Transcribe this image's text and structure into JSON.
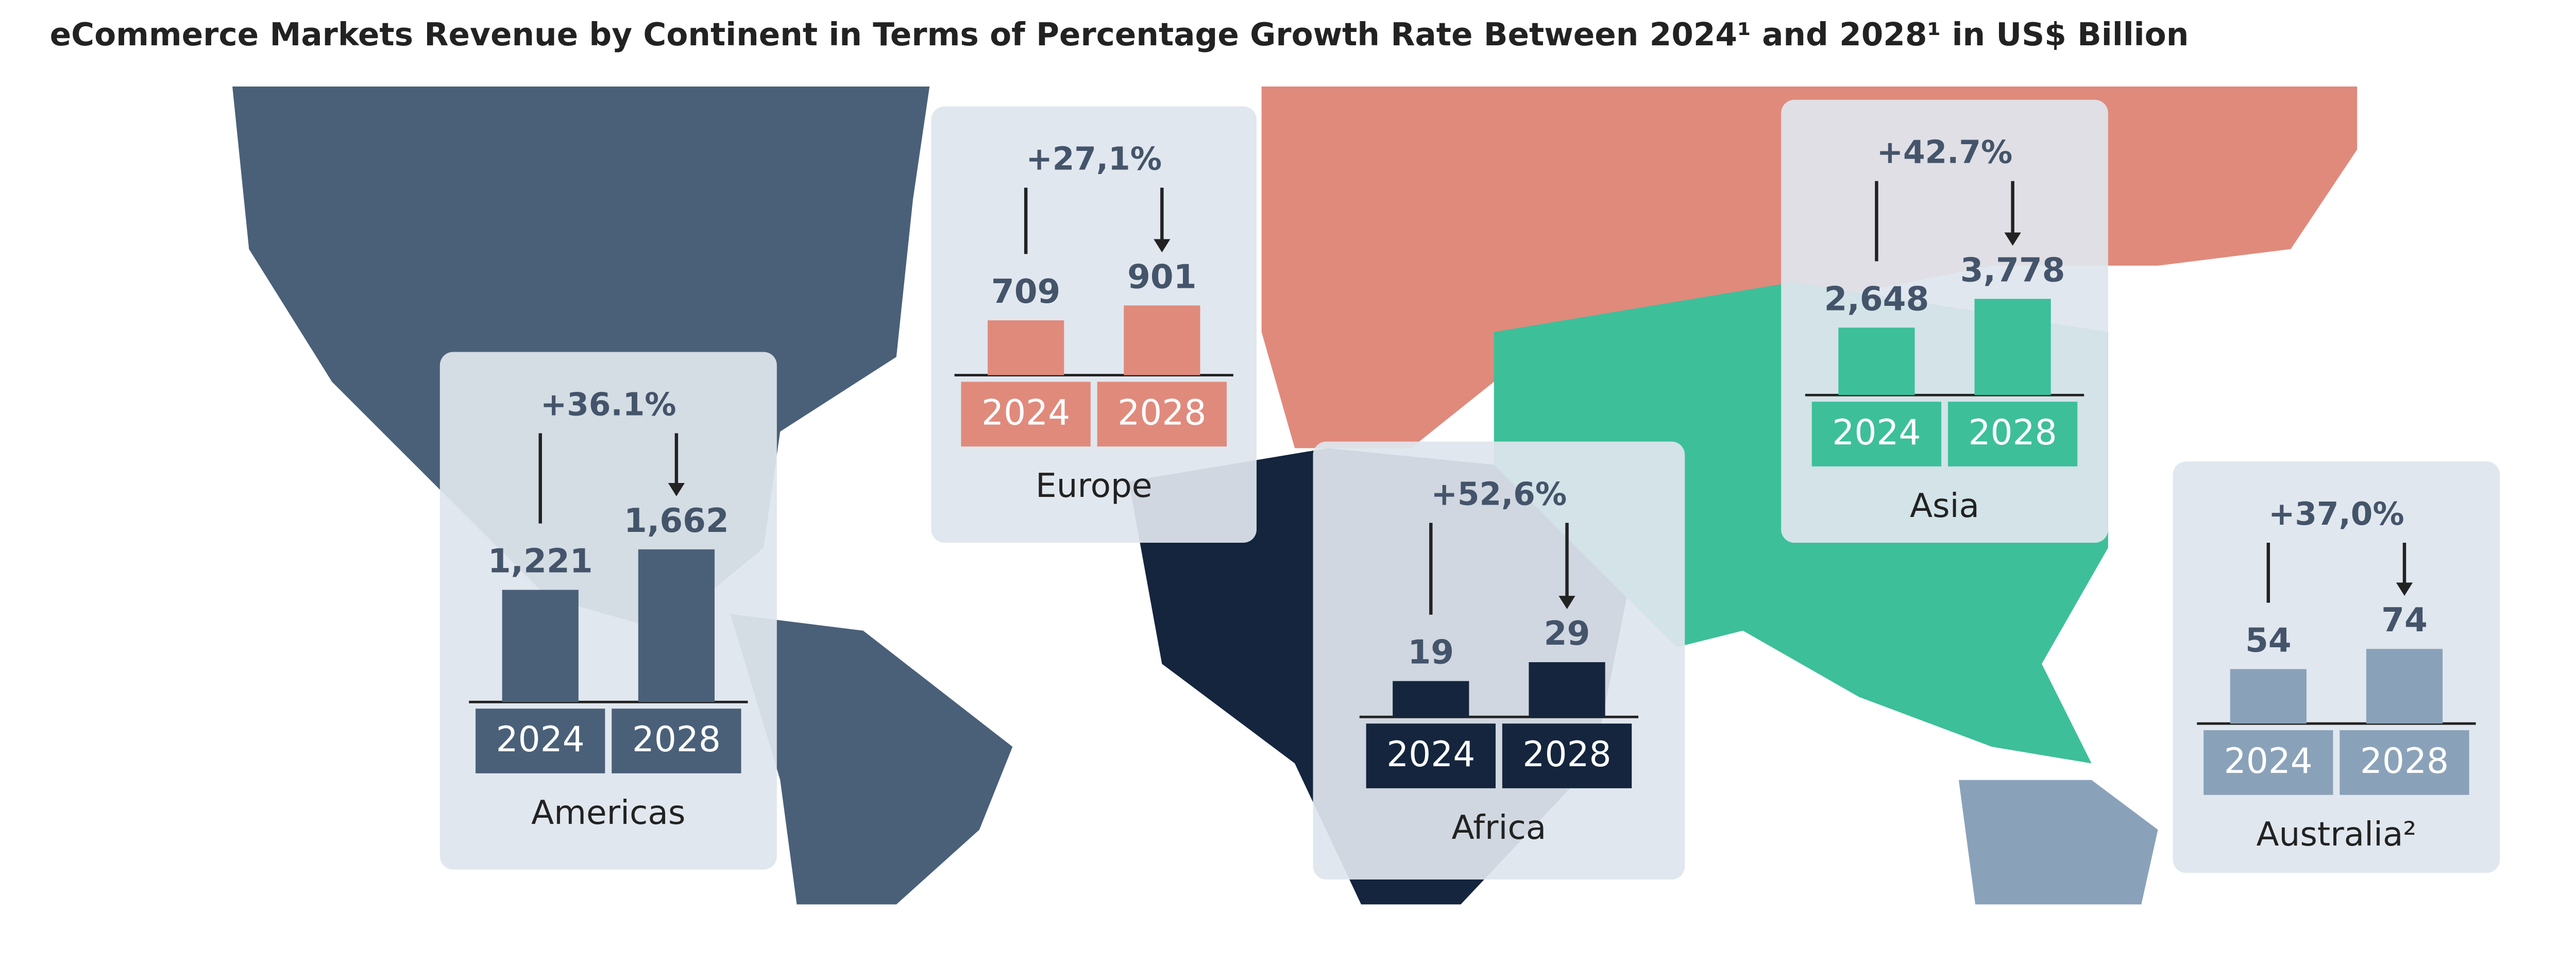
{
  "title": "eCommerce Markets Revenue by Continent in Terms of Percentage Growth Rate Between 2024¹ and 2028¹ in US$ Billion",
  "chart_data": [
    {
      "type": "bar",
      "title": "Americas",
      "change_label": "+36.1%",
      "categories": [
        "2024",
        "2028"
      ],
      "values": [
        1221,
        1662
      ],
      "value_labels": [
        "1,221",
        "1,662"
      ],
      "color": "#4a6079"
    },
    {
      "type": "bar",
      "title": "Europe",
      "change_label": "+27,1%",
      "categories": [
        "2024",
        "2028"
      ],
      "values": [
        709,
        901
      ],
      "color": "#e08a7c"
    },
    {
      "type": "bar",
      "title": "Africa",
      "change_label": "+52,6%",
      "categories": [
        "2024",
        "2028"
      ],
      "values": [
        19,
        29
      ],
      "color": "#14253d"
    },
    {
      "type": "bar",
      "title": "Asia",
      "change_label": "+42.7%",
      "categories": [
        "2024",
        "2028"
      ],
      "values": [
        2648,
        3778
      ],
      "value_labels": [
        "2,648",
        "3,778"
      ],
      "color": "#3dbf9a"
    },
    {
      "type": "bar",
      "title": "Australia²",
      "change_label": "+37,0%",
      "categories": [
        "2024",
        "2028"
      ],
      "values": [
        54,
        74
      ],
      "color": "#8aa2b9"
    }
  ]
}
